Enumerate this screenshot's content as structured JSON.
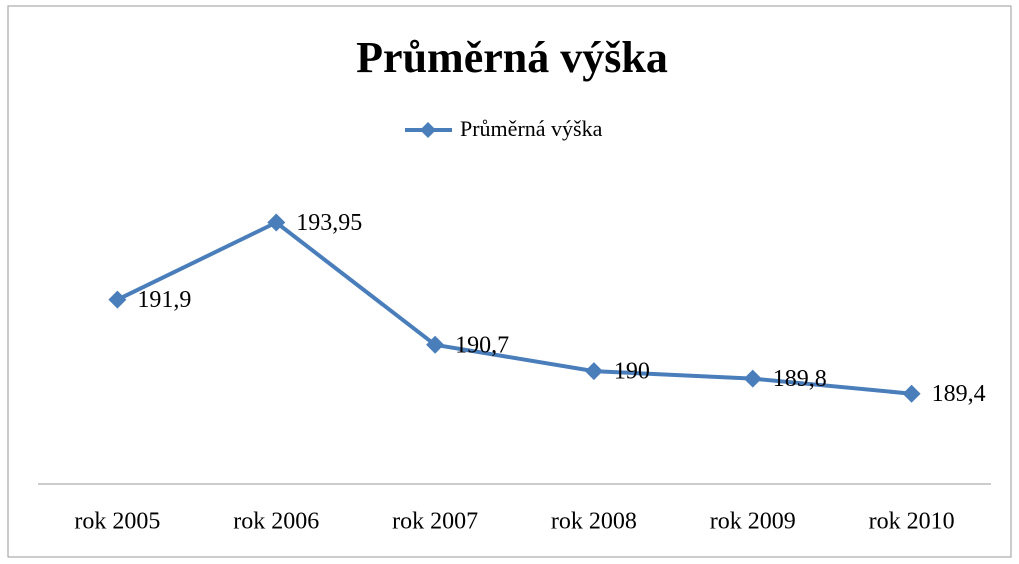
{
  "chart_data": {
    "type": "line",
    "title": "Průměrná výška",
    "categories": [
      "rok 2005",
      "rok 2006",
      "rok 2007",
      "rok 2008",
      "rok 2009",
      "rok 2010"
    ],
    "series": [
      {
        "name": "Průměrná výška",
        "color": "#4a7ebb",
        "values": [
          191.9,
          193.95,
          190.7,
          190,
          189.8,
          189.4
        ],
        "value_labels": [
          "191,9",
          "193,95",
          "190,7",
          "190",
          "189,8",
          "189,4"
        ]
      }
    ],
    "ylim": [
      187,
      195
    ],
    "legend": "top"
  }
}
